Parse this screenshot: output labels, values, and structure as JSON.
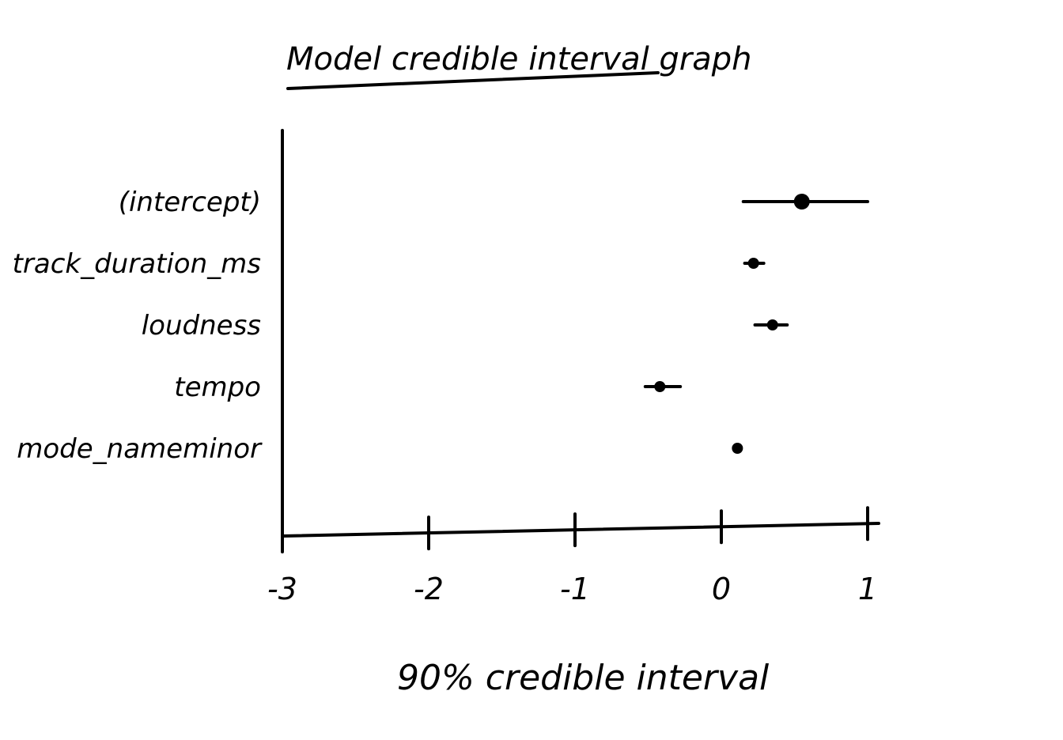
{
  "chart_data": {
    "type": "scatter",
    "style": "handwritten sketch, black ink on white",
    "title": "Model credible interval graph",
    "xlabel": "90% credible interval",
    "ylabel": "",
    "xlim": [
      -3,
      1
    ],
    "xticks": [
      {
        "value": -3,
        "label": "-3"
      },
      {
        "value": -2,
        "label": "-2"
      },
      {
        "value": -1,
        "label": "-1"
      },
      {
        "value": 0,
        "label": "0"
      },
      {
        "value": 1,
        "label": "1"
      }
    ],
    "grid": false,
    "legend": "none",
    "series": [
      {
        "categories": [
          "(intercept)",
          "track_duration_ms",
          "loudness",
          "tempo",
          "mode_nameminor"
        ],
        "estimate": [
          0.55,
          0.22,
          0.35,
          -0.42,
          0.11
        ],
        "lower": [
          0.15,
          0.16,
          0.23,
          -0.52,
          0.11
        ],
        "upper": [
          1.0,
          0.29,
          0.45,
          -0.28,
          0.11
        ]
      }
    ]
  }
}
